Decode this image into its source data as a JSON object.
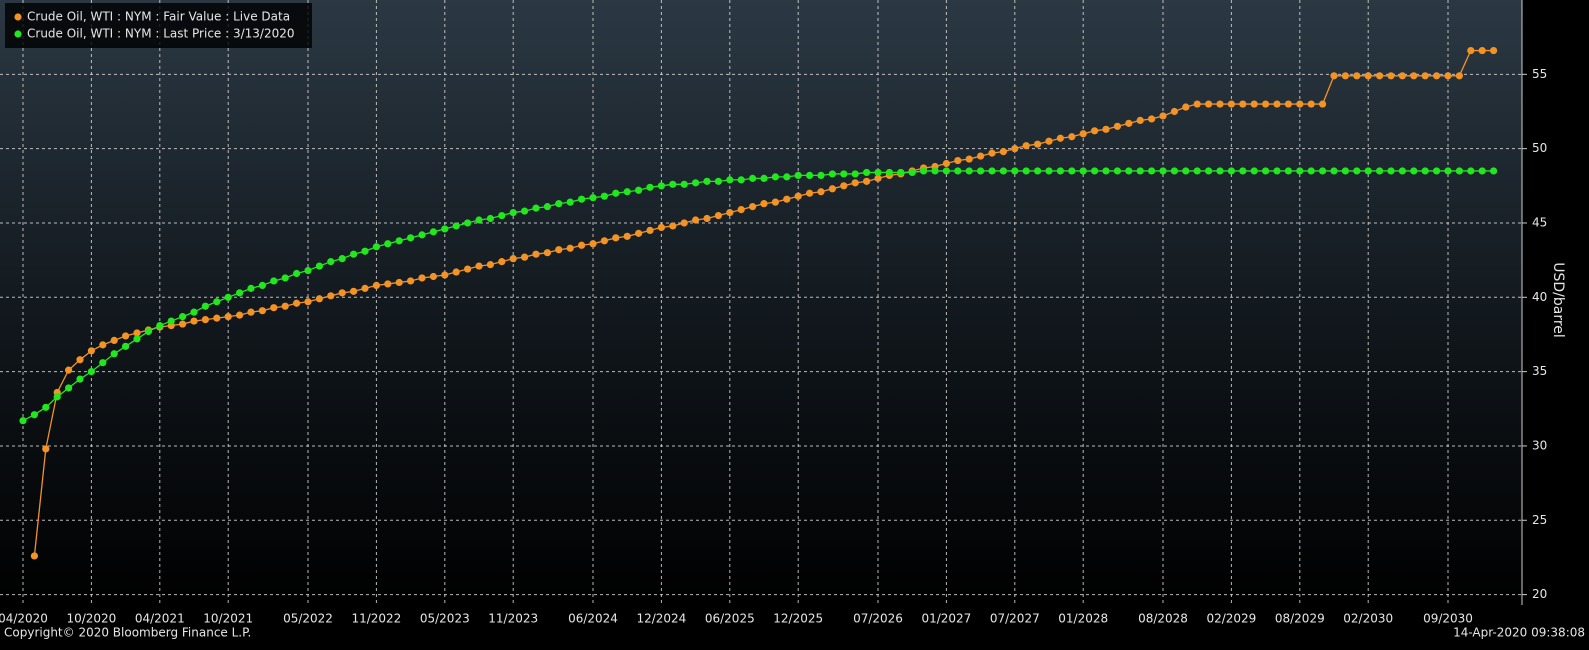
{
  "chart_data": {
    "type": "line",
    "legend": "top-left",
    "grid": true,
    "y_axis_label": "USD/barrel",
    "footer_left": "Copyright© 2020 Bloomberg Finance L.P.",
    "footer_right": "14-Apr-2020 09:38:08",
    "ylim": [
      19.3,
      60
    ],
    "yticks": [
      20,
      25,
      30,
      35,
      40,
      45,
      50,
      55
    ],
    "xticks": [
      "04/2020",
      "10/2020",
      "04/2021",
      "10/2021",
      "05/2022",
      "11/2022",
      "05/2023",
      "11/2023",
      "06/2024",
      "12/2024",
      "06/2025",
      "12/2025",
      "07/2026",
      "01/2027",
      "07/2027",
      "01/2028",
      "08/2028",
      "02/2029",
      "08/2029",
      "02/2030",
      "09/2030"
    ],
    "x": [
      "04/2020",
      "05/2020",
      "06/2020",
      "07/2020",
      "08/2020",
      "09/2020",
      "10/2020",
      "11/2020",
      "12/2020",
      "01/2021",
      "02/2021",
      "03/2021",
      "04/2021",
      "05/2021",
      "06/2021",
      "07/2021",
      "08/2021",
      "09/2021",
      "10/2021",
      "11/2021",
      "12/2021",
      "01/2022",
      "02/2022",
      "03/2022",
      "04/2022",
      "05/2022",
      "06/2022",
      "07/2022",
      "08/2022",
      "09/2022",
      "10/2022",
      "11/2022",
      "12/2022",
      "01/2023",
      "02/2023",
      "03/2023",
      "04/2023",
      "05/2023",
      "06/2023",
      "07/2023",
      "08/2023",
      "09/2023",
      "10/2023",
      "11/2023",
      "12/2023",
      "01/2024",
      "02/2024",
      "03/2024",
      "04/2024",
      "05/2024",
      "06/2024",
      "07/2024",
      "08/2024",
      "09/2024",
      "10/2024",
      "11/2024",
      "12/2024",
      "01/2025",
      "02/2025",
      "03/2025",
      "04/2025",
      "05/2025",
      "06/2025",
      "07/2025",
      "08/2025",
      "09/2025",
      "10/2025",
      "11/2025",
      "12/2025",
      "01/2026",
      "02/2026",
      "03/2026",
      "04/2026",
      "05/2026",
      "06/2026",
      "07/2026",
      "08/2026",
      "09/2026",
      "10/2026",
      "11/2026",
      "12/2026",
      "01/2027",
      "02/2027",
      "03/2027",
      "04/2027",
      "05/2027",
      "06/2027",
      "07/2027",
      "08/2027",
      "09/2027",
      "10/2027",
      "11/2027",
      "12/2027",
      "01/2028",
      "02/2028",
      "03/2028",
      "04/2028",
      "05/2028",
      "06/2028",
      "07/2028",
      "08/2028",
      "09/2028",
      "10/2028",
      "11/2028",
      "12/2028",
      "01/2029",
      "02/2029",
      "03/2029",
      "04/2029",
      "05/2029",
      "06/2029",
      "07/2029",
      "08/2029",
      "09/2029",
      "10/2029",
      "11/2029",
      "12/2029",
      "01/2030",
      "02/2030",
      "03/2030",
      "04/2030",
      "05/2030",
      "06/2030",
      "07/2030",
      "08/2030",
      "09/2030",
      "10/2030",
      "11/2030",
      "12/2030",
      "01/2031"
    ],
    "series": [
      {
        "name": "Crude Oil, WTI : NYM : Fair Value : Live Data",
        "color": "#f39325",
        "values": [
          null,
          22.6,
          29.8,
          33.6,
          35.1,
          35.8,
          36.4,
          36.8,
          37.1,
          37.4,
          37.6,
          37.8,
          38.0,
          38.1,
          38.2,
          38.4,
          38.5,
          38.6,
          38.7,
          38.8,
          39.0,
          39.1,
          39.3,
          39.4,
          39.6,
          39.7,
          39.9,
          40.1,
          40.3,
          40.4,
          40.6,
          40.8,
          40.9,
          41.0,
          41.1,
          41.3,
          41.4,
          41.5,
          41.7,
          41.9,
          42.1,
          42.2,
          42.4,
          42.6,
          42.7,
          42.9,
          43.0,
          43.2,
          43.3,
          43.5,
          43.6,
          43.8,
          44.0,
          44.1,
          44.3,
          44.5,
          44.7,
          44.8,
          45.0,
          45.2,
          45.3,
          45.5,
          45.7,
          45.9,
          46.1,
          46.3,
          46.4,
          46.6,
          46.8,
          47.0,
          47.1,
          47.3,
          47.5,
          47.7,
          47.8,
          48.0,
          48.2,
          48.3,
          48.5,
          48.7,
          48.8,
          49.0,
          49.2,
          49.3,
          49.5,
          49.7,
          49.8,
          50.0,
          50.2,
          50.3,
          50.5,
          50.7,
          50.8,
          51.0,
          51.2,
          51.3,
          51.5,
          51.7,
          51.9,
          52.0,
          52.2,
          52.5,
          52.8,
          53.0,
          53.0,
          53.0,
          53.0,
          53.0,
          53.0,
          53.0,
          53.0,
          53.0,
          53.0,
          53.0,
          53.0,
          54.9,
          54.9,
          54.9,
          54.9,
          54.9,
          54.9,
          54.9,
          54.9,
          54.9,
          54.9,
          54.9,
          54.9,
          56.6,
          56.6,
          56.6
        ]
      },
      {
        "name": "Crude Oil, WTI : NYM : Last Price : 3/13/2020",
        "color": "#22e61e",
        "values": [
          31.7,
          32.1,
          32.6,
          33.3,
          33.9,
          34.5,
          35.0,
          35.6,
          36.2,
          36.7,
          37.2,
          37.7,
          38.1,
          38.4,
          38.7,
          39.0,
          39.4,
          39.7,
          40.0,
          40.3,
          40.6,
          40.8,
          41.1,
          41.3,
          41.6,
          41.8,
          42.1,
          42.4,
          42.6,
          42.9,
          43.1,
          43.4,
          43.6,
          43.8,
          44.0,
          44.2,
          44.4,
          44.6,
          44.8,
          45.0,
          45.2,
          45.3,
          45.5,
          45.7,
          45.8,
          46.0,
          46.1,
          46.3,
          46.4,
          46.6,
          46.7,
          46.8,
          47.0,
          47.1,
          47.2,
          47.4,
          47.5,
          47.6,
          47.6,
          47.7,
          47.8,
          47.8,
          47.9,
          47.9,
          48.0,
          48.0,
          48.1,
          48.1,
          48.2,
          48.2,
          48.2,
          48.3,
          48.3,
          48.3,
          48.4,
          48.4,
          48.4,
          48.4,
          48.4,
          48.5,
          48.5,
          48.5,
          48.5,
          48.5,
          48.5,
          48.5,
          48.5,
          48.5,
          48.5,
          48.5,
          48.5,
          48.5,
          48.5,
          48.5,
          48.5,
          48.5,
          48.5,
          48.5,
          48.5,
          48.5,
          48.5,
          48.5,
          48.5,
          48.5,
          48.5,
          48.5,
          48.5,
          48.5,
          48.5,
          48.5,
          48.5,
          48.5,
          48.5,
          48.5,
          48.5,
          48.5,
          48.5,
          48.5,
          48.5,
          48.5,
          48.5,
          48.5,
          48.5,
          48.5,
          48.5,
          48.5,
          48.5,
          48.5,
          48.5,
          48.5
        ]
      }
    ]
  }
}
